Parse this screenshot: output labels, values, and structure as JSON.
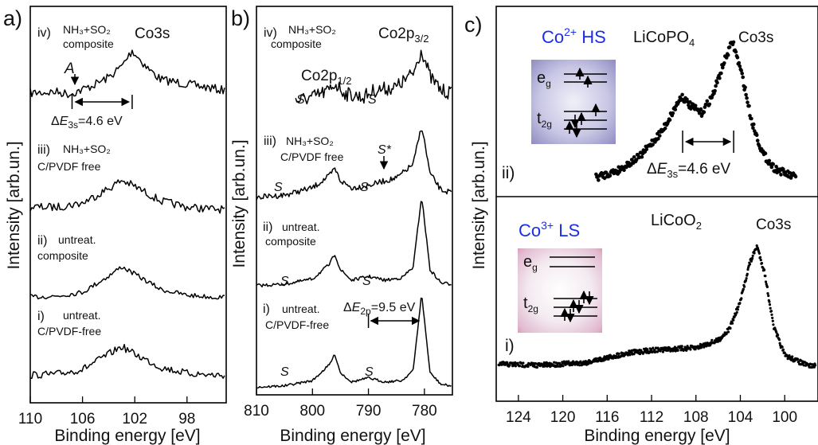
{
  "chart_data": [
    {
      "panel": "a)",
      "type": "line",
      "xlabel": "Binding energy [eV]",
      "ylabel": "Intensity [arb.un.]",
      "x_ticks": [
        110,
        106,
        102,
        98
      ],
      "xlim": [
        110,
        95
      ],
      "title": "Co3s",
      "series": [
        {
          "label_roman": "iv)",
          "label_line1": "NH₃+SO₂",
          "label_line2": "composite",
          "peak_ev": 102.2,
          "x": [
            110,
            108,
            107,
            106,
            105,
            104,
            103,
            102.2,
            101,
            100,
            98,
            96,
            95
          ],
          "y": [
            0.4,
            0.45,
            0.35,
            0.55,
            0.8,
            1.1,
            1.6,
            2.3,
            1.5,
            1.0,
            0.8,
            0.6,
            0.5
          ]
        },
        {
          "label_roman": "iii)",
          "label_line1": "NH₃+SO₂",
          "label_line2": "C/PVDF free",
          "peak_ev": 103,
          "x": [
            110,
            108,
            106,
            104,
            103,
            102,
            100,
            98,
            96,
            95
          ],
          "y": [
            0.3,
            0.3,
            0.5,
            1.2,
            1.6,
            1.3,
            0.6,
            0.3,
            0.2,
            0.2
          ]
        },
        {
          "label_roman": "ii)",
          "label_line1": "untreat.",
          "label_line2": "composite",
          "peak_ev": 103,
          "x": [
            110,
            108,
            106,
            104,
            103,
            102,
            100,
            98,
            96,
            95
          ],
          "y": [
            0.2,
            0.25,
            0.45,
            1.3,
            1.8,
            1.4,
            0.6,
            0.3,
            0.2,
            0.2
          ]
        },
        {
          "label_roman": "i)",
          "label_line1": "untreat.",
          "label_line2": "C/PVDF-free",
          "peak_ev": 103,
          "x": [
            110,
            108,
            106,
            104,
            103,
            102,
            100,
            98,
            96,
            95
          ],
          "y": [
            0.2,
            0.25,
            0.5,
            1.3,
            1.7,
            1.3,
            0.6,
            0.3,
            0.2,
            0.2
          ]
        }
      ],
      "annotations": {
        "A": "A",
        "delta_prefix": "Δ",
        "delta_var": "E",
        "delta_sub": "3s",
        "delta_value": "=4.6 eV",
        "delta_from_ev": 106.8,
        "delta_to_ev": 102.2
      }
    },
    {
      "panel": "b)",
      "type": "line",
      "xlabel": "Binding energy [eV]",
      "ylabel": "Intensity [arb.un.]",
      "x_ticks": [
        810,
        800,
        790,
        780
      ],
      "xlim": [
        810,
        775
      ],
      "peaks": {
        "p32_label": "Co2p",
        "p32_sub": "3/2",
        "p12_label": "Co2p",
        "p12_sub": "1/2"
      },
      "series": [
        {
          "label_roman": "iv)",
          "label_line1": "NH₃+SO₂",
          "label_line2": "composite",
          "x": [
            803,
            800,
            797,
            796,
            794,
            791,
            789,
            785,
            782,
            780.5,
            779,
            777,
            775
          ],
          "y": [
            0.5,
            0.6,
            0.8,
            1.0,
            0.7,
            0.6,
            0.8,
            0.9,
            1.3,
            2.0,
            1.2,
            0.8,
            0.7
          ]
        },
        {
          "label_roman": "iii)",
          "label_line1": "NH₃+SO₂",
          "label_line2": "C/PVDF free",
          "x": [
            810,
            805,
            800,
            797,
            796,
            795,
            793,
            790,
            787,
            785,
            782,
            780.5,
            779,
            777,
            775
          ],
          "y": [
            0.2,
            0.3,
            0.6,
            1.1,
            1.4,
            0.9,
            0.6,
            0.7,
            0.9,
            1.0,
            1.6,
            3.2,
            1.2,
            0.5,
            0.4
          ]
        },
        {
          "label_roman": "ii)",
          "label_line1": "untreat.",
          "label_line2": "composite",
          "x": [
            810,
            805,
            800,
            797,
            796,
            795,
            793,
            790,
            787,
            784,
            782,
            780.5,
            779,
            777,
            775
          ],
          "y": [
            0.1,
            0.15,
            0.35,
            0.9,
            1.3,
            0.7,
            0.3,
            0.45,
            0.3,
            0.4,
            0.8,
            3.5,
            0.7,
            0.2,
            0.15
          ]
        },
        {
          "label_roman": "i)",
          "label_line1": "untreat.",
          "label_line2": "C/PVDF-free",
          "x": [
            810,
            805,
            800,
            797,
            796,
            795,
            793,
            790,
            787,
            784,
            782,
            780.5,
            779,
            777,
            775
          ],
          "y": [
            0.05,
            0.1,
            0.3,
            0.9,
            1.3,
            0.6,
            0.25,
            0.4,
            0.25,
            0.3,
            0.7,
            3.6,
            0.6,
            0.15,
            0.1
          ]
        }
      ],
      "annotations": {
        "satellite": "S",
        "satellite_star": "S*",
        "delta_prefix": "Δ",
        "delta_var": "E",
        "delta_sub": "2p",
        "delta_value": "=9.5 eV",
        "delta_from_ev": 790,
        "delta_to_ev": 780.5
      }
    },
    {
      "panel": "c)",
      "type": "scatter",
      "xlabel": "Binding energy [eV]",
      "ylabel": "Intensity [arb.un.]",
      "x_ticks": [
        124,
        120,
        116,
        112,
        108,
        104,
        100
      ],
      "xlim": [
        126,
        97
      ],
      "subplots": [
        {
          "roman": "ii)",
          "compound": "LiCoPO",
          "compound_sub": "4",
          "core_level": "Co3s",
          "spin_state": "Co",
          "spin_sup": "2+",
          "spin_tail": " HS",
          "x": [
            117,
            115,
            113,
            111,
            110,
            109.3,
            108.5,
            107.5,
            106.5,
            105.5,
            104.7,
            103.8,
            103,
            102,
            101,
            100,
            99
          ],
          "y": [
            0.05,
            0.1,
            0.2,
            0.38,
            0.52,
            0.62,
            0.55,
            0.5,
            0.62,
            0.85,
            1.0,
            0.75,
            0.45,
            0.22,
            0.12,
            0.08,
            0.05
          ],
          "delta_prefix": "Δ",
          "delta_var": "E",
          "delta_sub": "3s",
          "delta_value": "=4.6 eV",
          "delta_from_ev": 109.2,
          "delta_to_ev": 104.6
        },
        {
          "roman": "i)",
          "compound": "LiCoO",
          "compound_sub": "2",
          "core_level": "Co3s",
          "spin_state": "Co",
          "spin_sup": "3+",
          "spin_tail": " LS",
          "x": [
            126,
            122,
            118,
            116,
            114,
            112,
            110,
            108,
            106,
            105,
            104,
            103.2,
            102.5,
            101.8,
            101,
            100,
            98,
            97
          ],
          "y": [
            0.05,
            0.04,
            0.06,
            0.1,
            0.14,
            0.16,
            0.17,
            0.18,
            0.24,
            0.33,
            0.55,
            0.85,
            1.0,
            0.78,
            0.35,
            0.12,
            0.04,
            0.03
          ]
        }
      ],
      "inset_labels": {
        "eg": "e",
        "eg_sub": "g",
        "t2g": "t",
        "t2g_sub": "2g"
      }
    }
  ]
}
